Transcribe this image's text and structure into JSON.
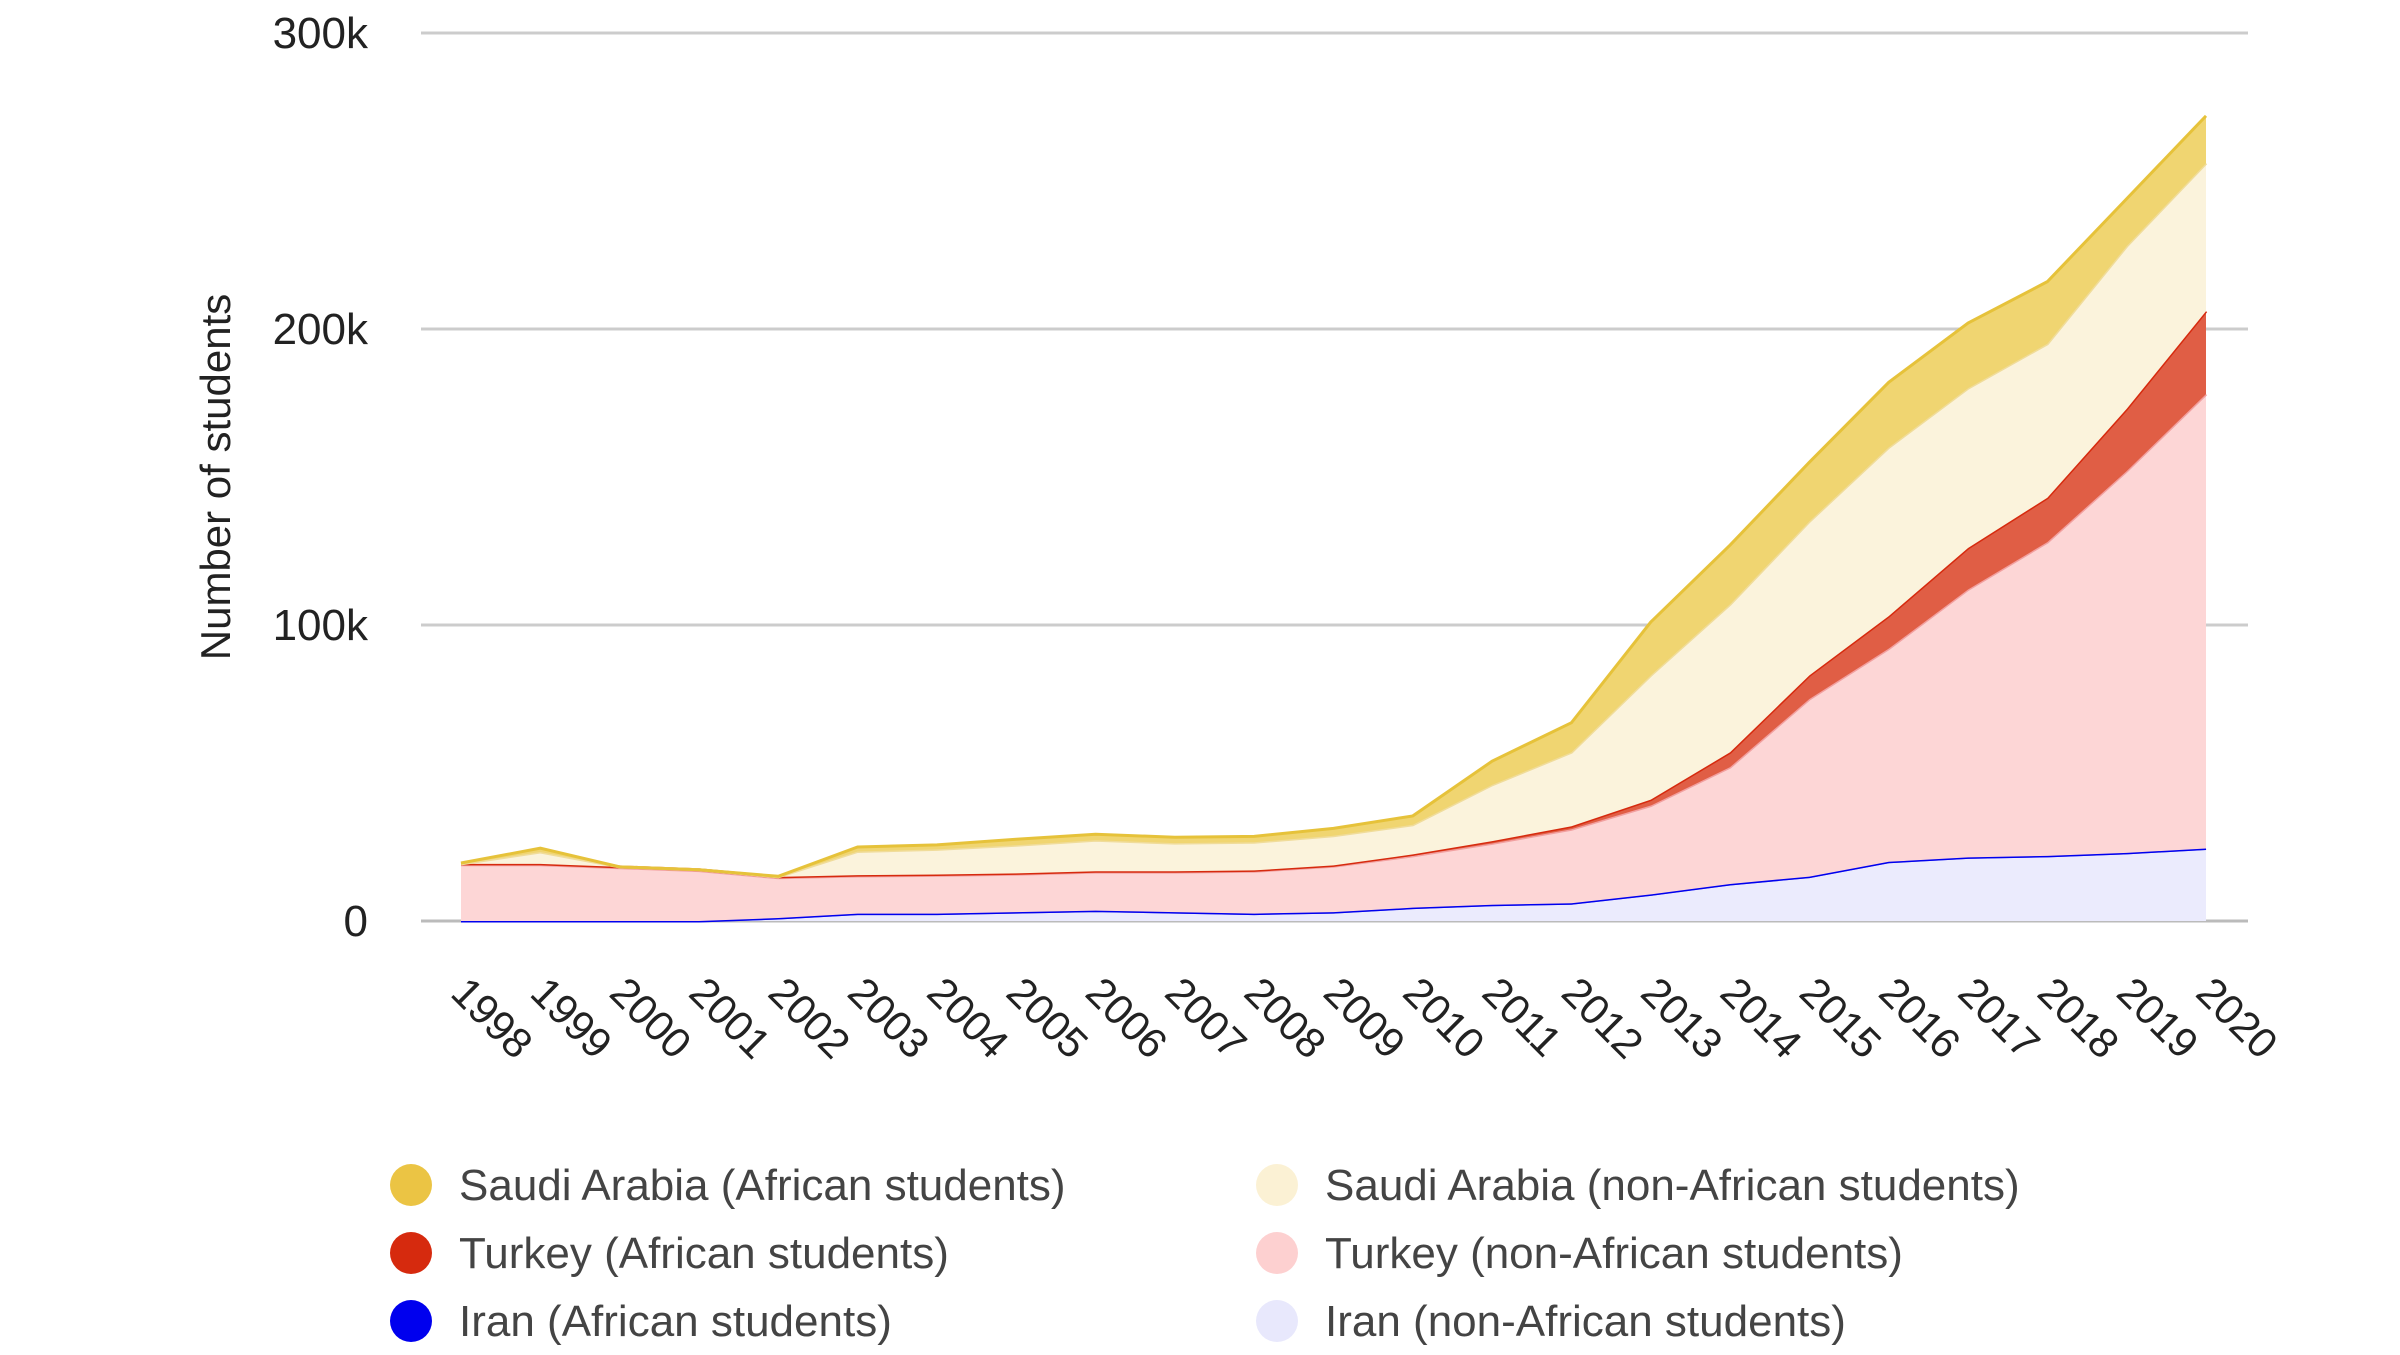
{
  "chart_data": {
    "type": "area",
    "stacked": true,
    "title": "",
    "xlabel": "",
    "ylabel": "Number of students",
    "ylim": [
      0,
      300000
    ],
    "yticks": [
      0,
      100000,
      200000,
      300000
    ],
    "ytick_labels": [
      "0",
      "100k",
      "200k",
      "300k"
    ],
    "grid": true,
    "legend_position": "bottom",
    "x": [
      "1998",
      "1999",
      "2000",
      "2001",
      "2002",
      "2003",
      "2004",
      "2005",
      "2006",
      "2007",
      "2008",
      "2009",
      "2010",
      "2011",
      "2012",
      "2013",
      "2014",
      "2015",
      "2016",
      "2017",
      "2018",
      "2019",
      "2020"
    ],
    "series": [
      {
        "name": "Iran (non-African students)",
        "color": "#ebebfd",
        "line": "#8080f5",
        "values": [
          0,
          0,
          0,
          0,
          1000,
          2500,
          2500,
          3000,
          3500,
          3000,
          2500,
          3000,
          4500,
          5500,
          6000,
          9000,
          12500,
          15000,
          20000,
          21500,
          22000,
          23000,
          24500
        ]
      },
      {
        "name": "Iran (African students)",
        "color": "#0000ee",
        "line": "#0000ee",
        "values": [
          0,
          0,
          0,
          0,
          0,
          0,
          0,
          0,
          0,
          0,
          0,
          0,
          0,
          0,
          0,
          0,
          0,
          0,
          0,
          0,
          0,
          0,
          0
        ]
      },
      {
        "name": "Turkey (non-African students)",
        "color": "#fdd6d6",
        "line": "#f2a0a0",
        "values": [
          19000,
          19000,
          18000,
          17000,
          13600,
          12700,
          12900,
          12800,
          13000,
          13500,
          14300,
          15500,
          17500,
          20700,
          25000,
          30000,
          39500,
          60000,
          72000,
          90500,
          106000,
          129000,
          153500
        ]
      },
      {
        "name": "Turkey (African students)",
        "color": "#e05e45",
        "line": "#d62a0e",
        "values": [
          300,
          300,
          300,
          300,
          300,
          300,
          300,
          300,
          300,
          300,
          300,
          300,
          500,
          800,
          1000,
          2000,
          5000,
          8000,
          11000,
          14000,
          15000,
          21000,
          28000
        ]
      },
      {
        "name": "Saudi Arabia (non-African students)",
        "color": "#fbf3dc",
        "line": "#f0dc9a",
        "values": [
          0,
          4000,
          0,
          0,
          0,
          8000,
          8500,
          9500,
          10500,
          9500,
          9500,
          10000,
          10000,
          19000,
          25000,
          42000,
          50000,
          52000,
          57000,
          54000,
          52000,
          55000,
          50000
        ]
      },
      {
        "name": "Saudi Arabia (African students)",
        "color": "#f0d571",
        "line": "#e6c23a",
        "values": [
          300,
          1300,
          0,
          0,
          200,
          1500,
          1500,
          2000,
          2000,
          2000,
          2000,
          2500,
          3000,
          8000,
          10000,
          18000,
          20000,
          20000,
          22000,
          22000,
          21000,
          16000,
          16000
        ]
      }
    ],
    "legend": [
      {
        "label": "Saudi Arabia (African students)",
        "color": "#ebc444"
      },
      {
        "label": "Saudi Arabia (non-African students)",
        "color": "#fbf1d4"
      },
      {
        "label": "Turkey (African students)",
        "color": "#d62a0e"
      },
      {
        "label": "Turkey (non-African students)",
        "color": "#fdd0d0"
      },
      {
        "label": "Iran (African students)",
        "color": "#0000ee"
      },
      {
        "label": "Iran (non-African students)",
        "color": "#e8e8fc"
      }
    ]
  }
}
